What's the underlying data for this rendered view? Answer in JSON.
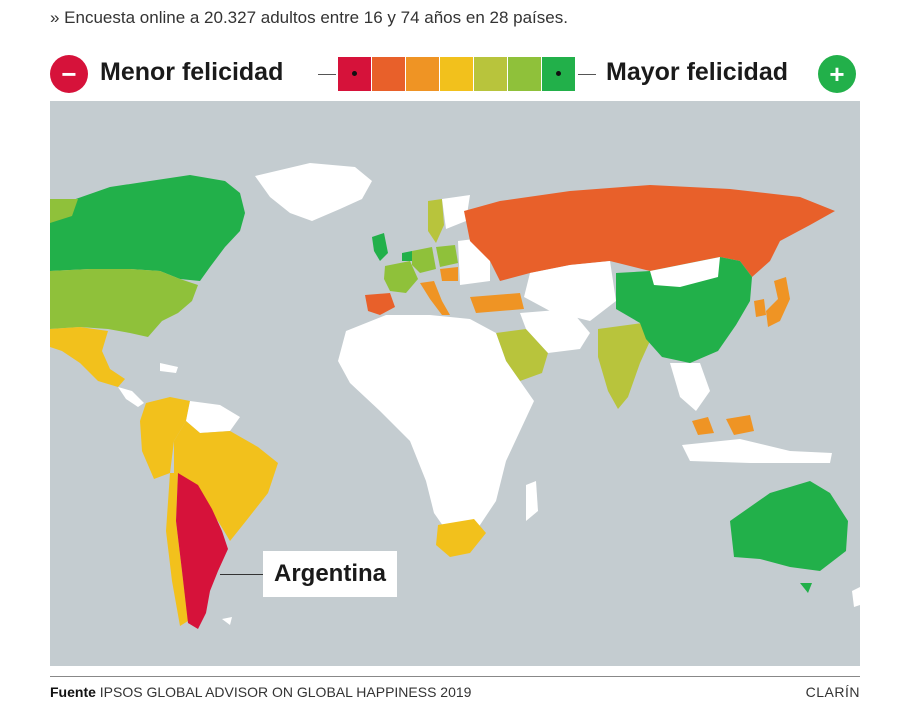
{
  "subtitle": "» Encuesta online a 20.327 adultos entre 16 y 74 años en 28 países.",
  "legend": {
    "less_label": "Menor felicidad",
    "more_label": "Mayor felicidad",
    "less_icon": "minus-icon",
    "more_icon": "plus-icon",
    "less_symbol": "−",
    "more_symbol": "+",
    "less_color": "#d6123a",
    "more_color": "#22b04a",
    "scale_colors": [
      "#d6123a",
      "#e8602a",
      "#ef9424",
      "#f2c11c",
      "#b8c43c",
      "#8fc13a",
      "#22b04a"
    ]
  },
  "map": {
    "ocean_color": "#c4ccd0",
    "land_color": "#ffffff",
    "callout_label": "Argentina",
    "highlighted_country": "Argentina"
  },
  "footer": {
    "source_label": "Fuente",
    "source_text": "IPSOS GLOBAL ADVISOR ON GLOBAL HAPPINESS 2019",
    "brand": "CLARÍN"
  }
}
